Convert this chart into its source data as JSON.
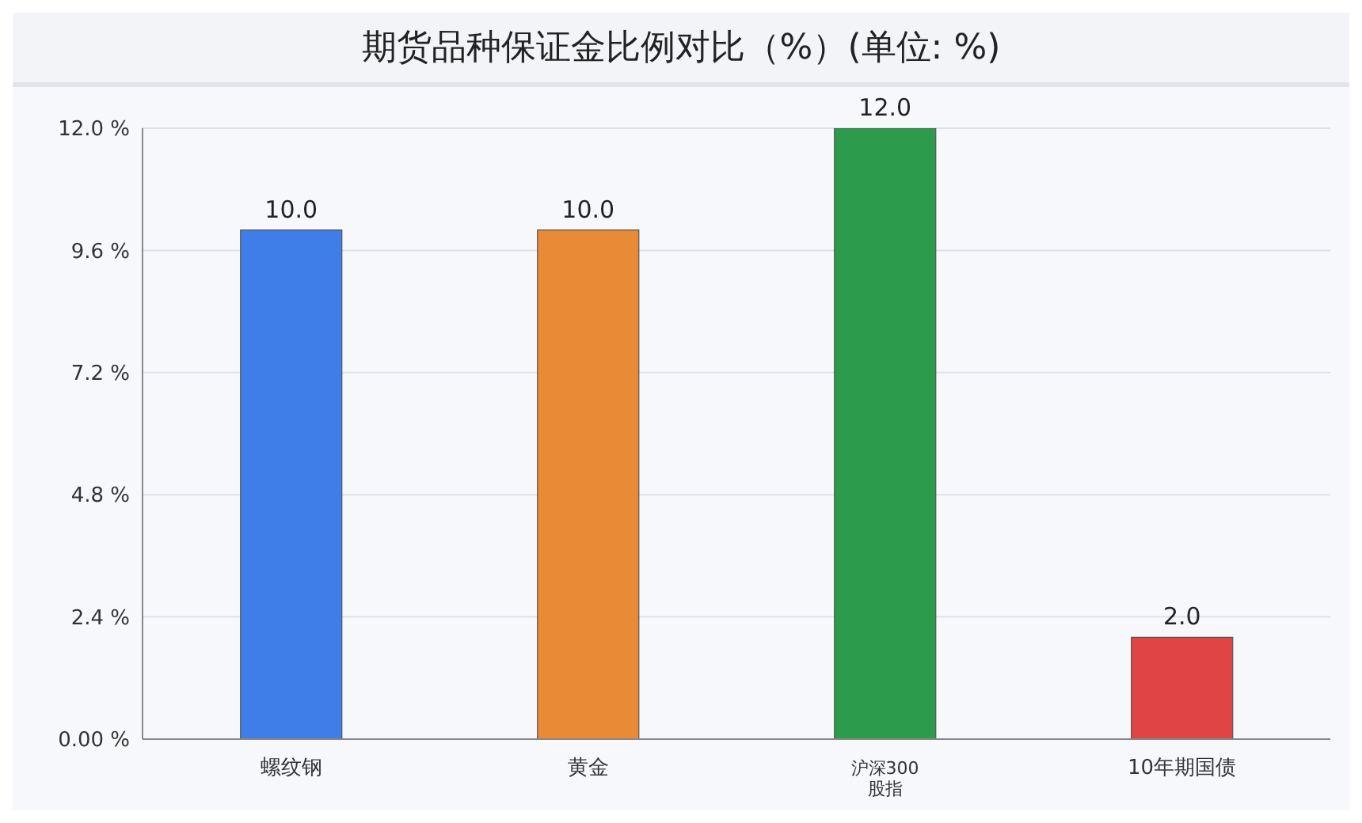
{
  "chart_data": {
    "type": "bar",
    "title": "期货品种保证金比例对比（%）(单位: %)",
    "categories": [
      "螺纹钢",
      "黄金",
      "沪深300股指",
      "10年期国债"
    ],
    "values": [
      10.0,
      10.0,
      12.0,
      2.0
    ],
    "colors": [
      "#3f7ee8",
      "#e88a36",
      "#2c9c4c",
      "#e04444"
    ],
    "ylim": [
      0,
      12
    ],
    "yticks": [
      {
        "value": 0,
        "label": "0.00 %"
      },
      {
        "value": 2.4,
        "label": "2.4 %"
      },
      {
        "value": 4.8,
        "label": "4.8 %"
      },
      {
        "value": 7.2,
        "label": "7.2 %"
      },
      {
        "value": 9.6,
        "label": "9.6 %"
      },
      {
        "value": 12,
        "label": "12.0 %"
      }
    ],
    "value_labels": [
      "10.0",
      "10.0",
      "12.0",
      "2.0"
    ],
    "grid": "y"
  }
}
